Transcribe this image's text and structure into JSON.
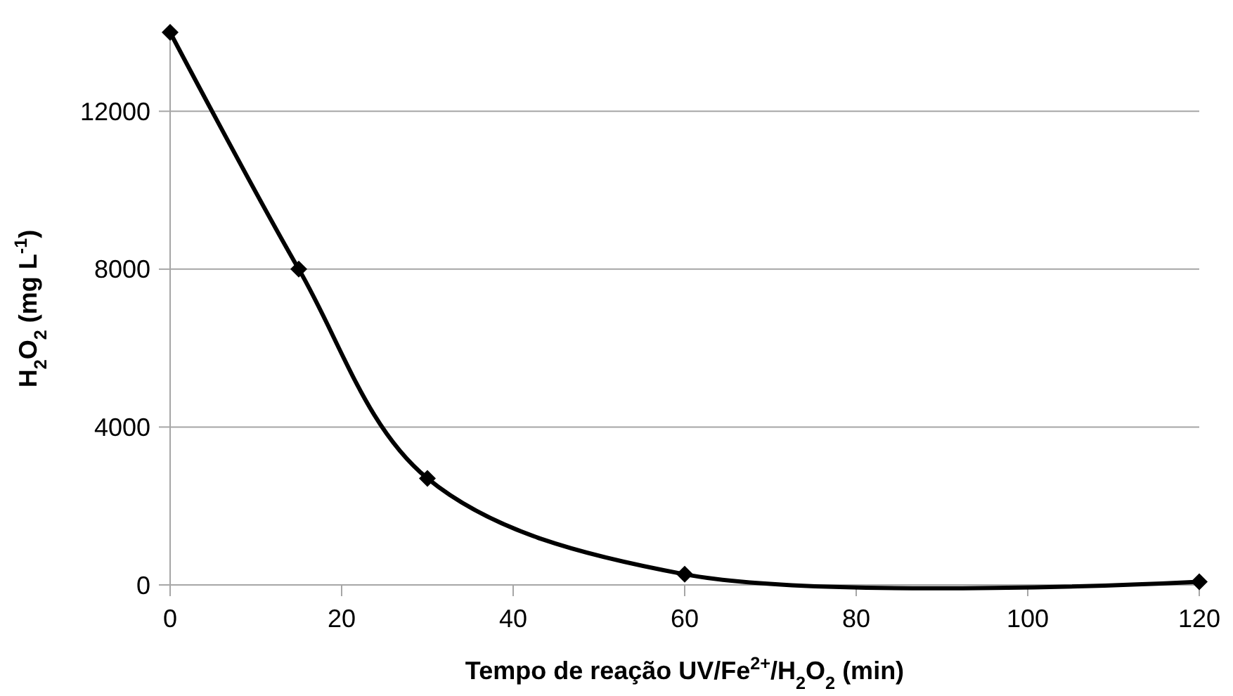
{
  "chart_data": {
    "type": "line",
    "xlabel": "Tempo de reação UV/Fe$^{2+}$/H$_{2}$O$_{2}$ (min)",
    "ylabel": "H$_{2}$O$_{2}$ (mg L$^{-1}$)",
    "x": [
      0,
      15,
      30,
      60,
      120
    ],
    "series": [
      {
        "color": "#000000",
        "values": [
          14000,
          8000,
          2700,
          270,
          80
        ]
      }
    ],
    "xlim": [
      0,
      120
    ],
    "xticks": [
      0,
      20,
      40,
      60,
      80,
      100,
      120
    ],
    "ylim": [
      0,
      14000
    ],
    "yticks": [
      0,
      4000,
      8000,
      12000
    ],
    "grid": "y",
    "marker": "diamond",
    "line_style": "solid"
  }
}
